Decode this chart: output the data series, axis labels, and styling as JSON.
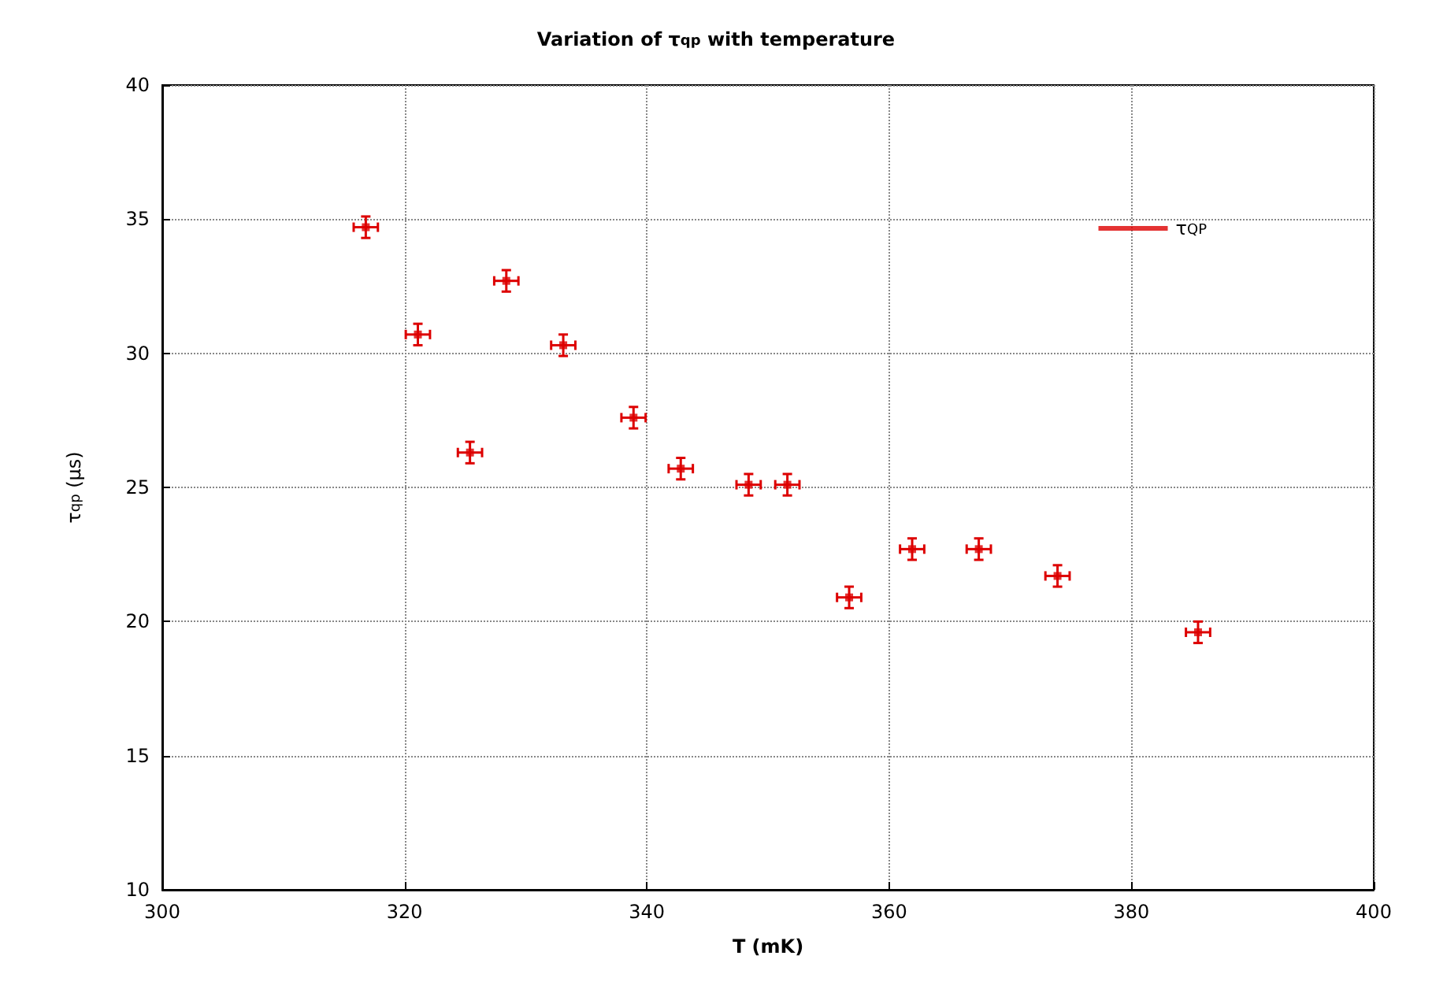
{
  "chart_data": {
    "type": "scatter",
    "title": "Variation of τ$_{qp}$ with temperature",
    "xlabel": "T (mK)",
    "ylabel": "τ$_{qp}$ (μs)",
    "xlim": [
      300,
      400
    ],
    "xticks": [
      300,
      320,
      340,
      360,
      380,
      400
    ],
    "ylim": [
      10,
      40
    ],
    "yticks": [
      10,
      15,
      20,
      25,
      30,
      35,
      40
    ],
    "grid": true,
    "legend": "top right",
    "marker": "square",
    "series": [
      {
        "name": "τ$_{QP}$",
        "color": "#dd0000",
        "x": [
          316.8,
          321.1,
          325.4,
          328.4,
          333.1,
          338.9,
          342.8,
          348.4,
          351.6,
          356.7,
          361.9,
          367.4,
          373.9,
          385.5
        ],
        "values": [
          34.7,
          30.7,
          26.3,
          32.7,
          30.3,
          27.6,
          25.7,
          25.1,
          25.1,
          20.9,
          22.7,
          22.7,
          21.7,
          19.6
        ],
        "errors": [
          0.4,
          0.4,
          0.4,
          0.4,
          0.4,
          0.4,
          0.4,
          0.4,
          0.4,
          0.4,
          0.4,
          0.4,
          0.4,
          0.4
        ],
        "xerrors": [
          1,
          1,
          1,
          1,
          1,
          1,
          1,
          1,
          1,
          1,
          1,
          1,
          1,
          1
        ]
      }
    ]
  }
}
